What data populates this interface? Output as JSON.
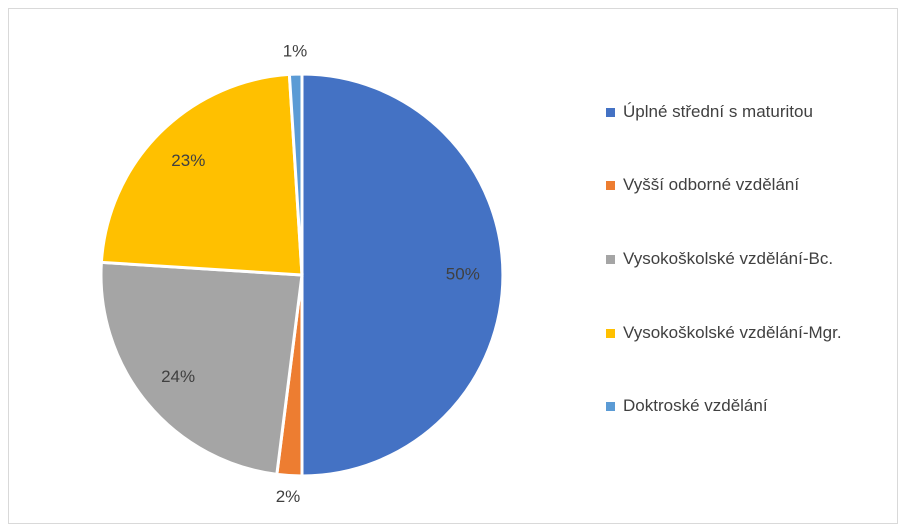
{
  "chart_data": {
    "type": "pie",
    "categories": [
      "Úplné střední s maturitou",
      "Vyšší odborné vzdělání",
      "Vysokoškolské vzdělání-Bc.",
      "Vysokoškolské vzdělání-Mgr.",
      "Doktroské vzdělání"
    ],
    "values": [
      50,
      2,
      24,
      23,
      1
    ],
    "value_labels": [
      "50%",
      "2%",
      "24%",
      "23%",
      "1%"
    ],
    "colors": [
      "#4472c4",
      "#ed7d31",
      "#a5a5a5",
      "#ffc000",
      "#5b9bd5"
    ],
    "legend": "right"
  }
}
